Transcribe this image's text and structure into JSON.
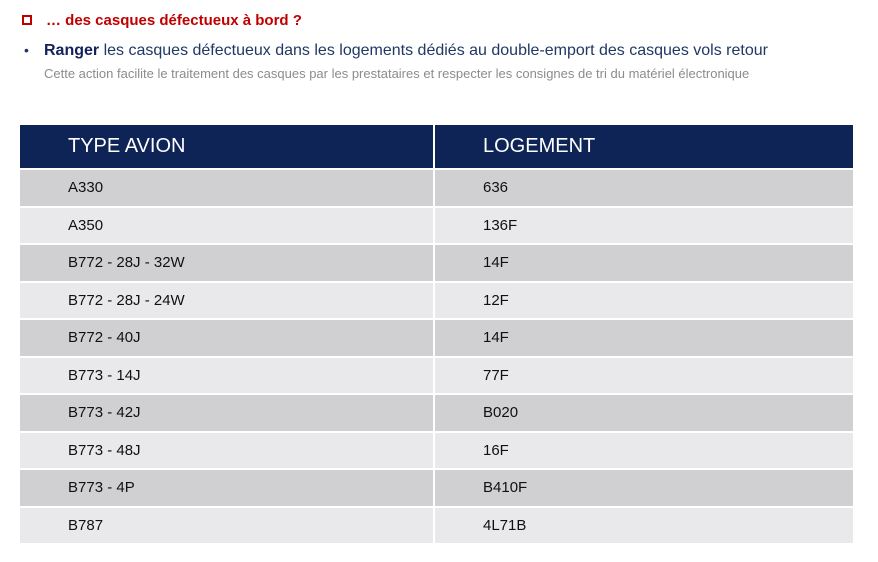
{
  "heading": {
    "text": "… des casques défectueux à bord ?"
  },
  "instruction": {
    "bullet": "•",
    "strong": "Ranger",
    "rest": " les casques défectueux dans les logements dédiés au double-emport des casques vols retour",
    "note": "Cette action facilite le traitement des casques par les prestataires et respecter les consignes de tri du matériel électronique"
  },
  "table": {
    "headers": [
      "TYPE AVION",
      "LOGEMENT"
    ],
    "rows": [
      [
        "A330",
        "636"
      ],
      [
        "A350",
        "136F"
      ],
      [
        "B772 - 28J - 32W",
        "14F"
      ],
      [
        "B772 - 28J - 24W",
        "12F"
      ],
      [
        "B772 - 40J",
        "14F"
      ],
      [
        "B773 - 14J",
        "77F"
      ],
      [
        "B773 - 42J",
        "B020"
      ],
      [
        "B773 - 48J",
        "16F"
      ],
      [
        "B773 - 4P",
        "B410F"
      ],
      [
        "B787",
        "4L71B"
      ]
    ]
  }
}
